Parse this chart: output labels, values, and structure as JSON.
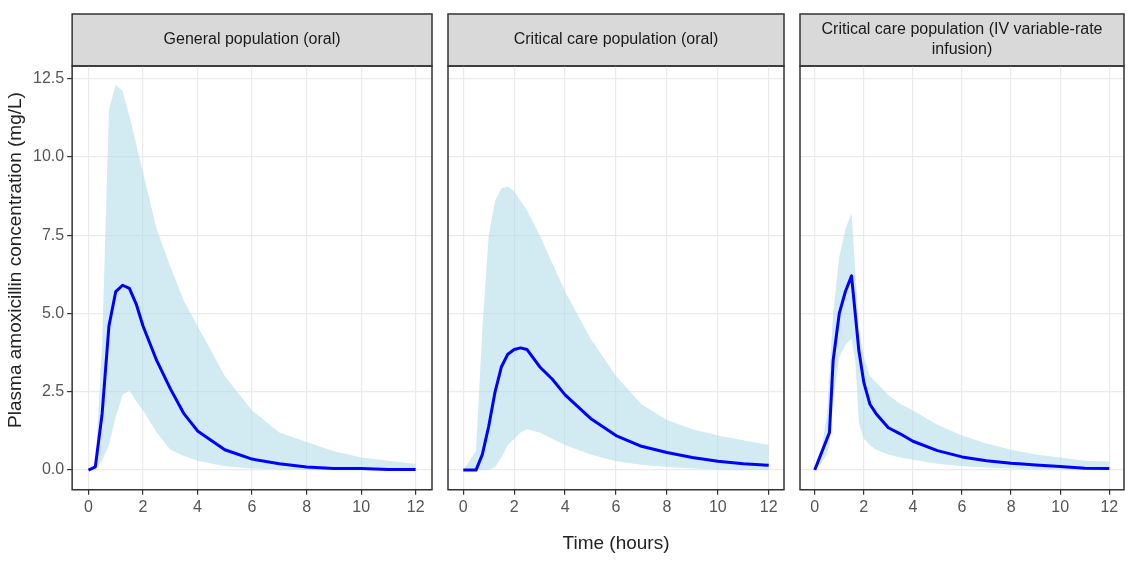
{
  "chart_data": [
    {
      "type": "line",
      "title": "General population (oral)",
      "ylabel": "Plasma amoxicillin concentration (mg/L)",
      "xlim": [
        -0.6,
        12.6
      ],
      "ylim": [
        -0.63,
        12.9
      ],
      "xticks": [
        0,
        2,
        4,
        6,
        8,
        10,
        12
      ],
      "yticks": [
        {
          "value": 0,
          "label": "0.0"
        },
        {
          "value": 2.5,
          "label": "2.5"
        },
        {
          "value": 5,
          "label": "5.0"
        },
        {
          "value": 7.5,
          "label": "7.5"
        },
        {
          "value": 10,
          "label": "10.0"
        },
        {
          "value": 12.5,
          "label": "12.5"
        }
      ],
      "grid": true,
      "legend": false,
      "marker": "none",
      "line_style": "solid",
      "x": [
        0,
        0.25,
        0.5,
        0.75,
        1,
        1.25,
        1.5,
        1.75,
        2,
        2.5,
        3,
        3.5,
        4,
        5,
        6,
        7,
        8,
        9,
        10,
        11,
        12
      ],
      "series": [
        {
          "color": "#0000ff",
          "values": [
            0,
            0.1,
            1.8,
            4.6,
            5.7,
            5.9,
            5.8,
            5.3,
            4.6,
            3.5,
            2.6,
            1.8,
            1.25,
            0.65,
            0.35,
            0.2,
            0.1,
            0.05,
            0.05,
            0.02,
            0.02
          ],
          "lower": [
            0,
            0,
            0.3,
            0.8,
            1.7,
            2.4,
            2.55,
            2.2,
            1.9,
            1.2,
            0.65,
            0.45,
            0.3,
            0.12,
            0.05,
            0.02,
            0,
            0,
            0,
            0,
            0
          ],
          "upper": [
            0,
            0.1,
            4,
            11.5,
            12.3,
            12.1,
            11.3,
            10.4,
            9.5,
            7.7,
            6.5,
            5.4,
            4.6,
            3.0,
            1.9,
            1.2,
            0.9,
            0.6,
            0.4,
            0.3,
            0.2
          ]
        }
      ]
    },
    {
      "type": "line",
      "title": "Critical care population (oral)",
      "xlabel": "Time (hours)",
      "xlim": [
        -0.6,
        12.6
      ],
      "ylim": [
        -0.63,
        12.9
      ],
      "xticks": [
        0,
        2,
        4,
        6,
        8,
        10,
        12
      ],
      "yticks": [
        0,
        2.5,
        5,
        7.5,
        10,
        12.5
      ],
      "tick_labels": "x",
      "grid": true,
      "legend": false,
      "marker": "none",
      "line_style": "solid",
      "x": [
        0,
        0.5,
        0.75,
        1,
        1.25,
        1.5,
        1.75,
        2,
        2.25,
        2.5,
        3,
        3.5,
        4,
        5,
        6,
        7,
        8,
        9,
        10,
        11,
        12
      ],
      "series": [
        {
          "color": "#0000ff",
          "values": [
            0,
            0,
            0.5,
            1.4,
            2.5,
            3.3,
            3.7,
            3.85,
            3.9,
            3.85,
            3.3,
            2.9,
            2.4,
            1.65,
            1.1,
            0.76,
            0.56,
            0.4,
            0.28,
            0.2,
            0.15
          ],
          "lower": [
            0,
            0,
            0,
            0,
            0.1,
            0.4,
            0.8,
            1.0,
            1.2,
            1.3,
            1.2,
            1.0,
            0.8,
            0.5,
            0.28,
            0.17,
            0.1,
            0.05,
            0.02,
            0,
            0
          ],
          "upper": [
            0,
            0.6,
            4.5,
            7.5,
            8.6,
            9.0,
            9.05,
            8.9,
            8.6,
            8.3,
            7.5,
            6.6,
            5.7,
            4.2,
            3.0,
            2.1,
            1.6,
            1.3,
            1.1,
            0.95,
            0.8
          ]
        }
      ]
    },
    {
      "type": "line",
      "title": "Critical care population (IV variable-rate infusion)",
      "xlim": [
        -0.6,
        12.6
      ],
      "ylim": [
        -0.63,
        12.9
      ],
      "xticks": [
        0,
        2,
        4,
        6,
        8,
        10,
        12
      ],
      "yticks": [
        0,
        2.5,
        5,
        7.5,
        10,
        12.5
      ],
      "tick_labels": "x",
      "grid": true,
      "legend": false,
      "marker": "none",
      "line_style": "solid",
      "x": [
        0,
        0.25,
        0.5,
        0.6,
        0.75,
        1,
        1.25,
        1.5,
        1.65,
        1.8,
        2,
        2.25,
        2.5,
        3,
        3.5,
        4,
        5,
        6,
        7,
        8,
        9,
        10,
        11,
        12
      ],
      "series": [
        {
          "color": "#0000ff",
          "values": [
            0,
            0.5,
            1.0,
            1.2,
            3.5,
            5.0,
            5.7,
            6.2,
            5.0,
            3.8,
            2.8,
            2.1,
            1.8,
            1.35,
            1.15,
            0.92,
            0.62,
            0.42,
            0.3,
            0.22,
            0.16,
            0.11,
            0.06,
            0.05
          ],
          "lower": [
            0,
            0.2,
            0.5,
            0.8,
            2.2,
            3.6,
            4.0,
            4.2,
            3.5,
            1.5,
            1.0,
            0.8,
            0.65,
            0.5,
            0.4,
            0.33,
            0.2,
            0.12,
            0.08,
            0.05,
            0.03,
            0.02,
            0.02,
            0.02
          ],
          "upper": [
            0,
            0.5,
            1.8,
            3.0,
            5.0,
            6.8,
            7.7,
            8.2,
            6.4,
            4.5,
            3.6,
            3.0,
            2.8,
            2.4,
            2.1,
            1.9,
            1.45,
            1.1,
            0.85,
            0.65,
            0.5,
            0.4,
            0.3,
            0.27
          ]
        }
      ]
    }
  ]
}
